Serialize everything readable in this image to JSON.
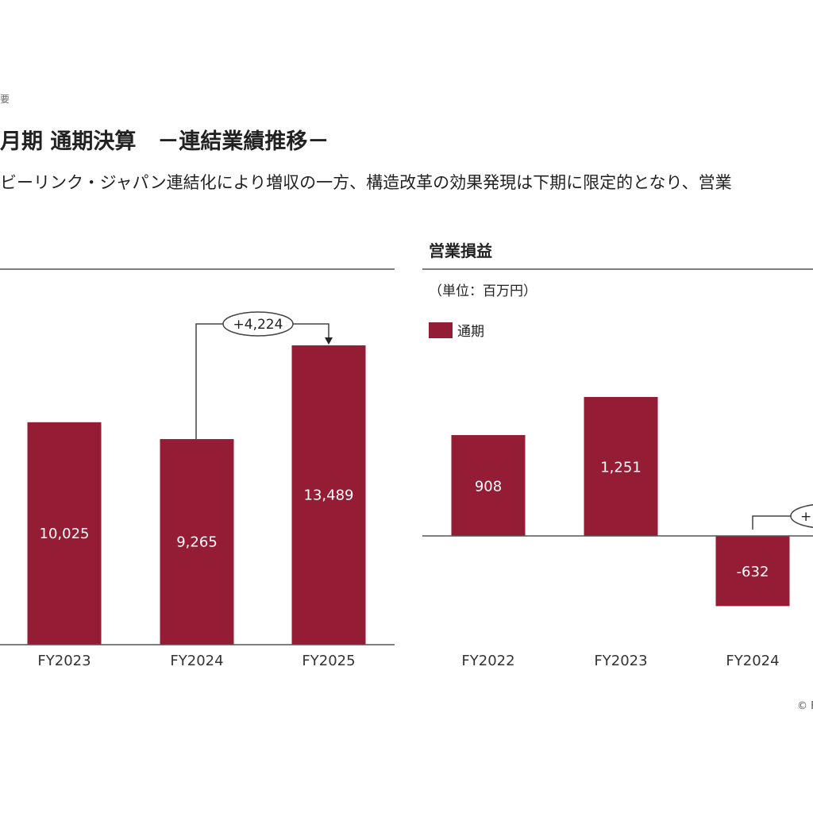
{
  "header": {
    "breadcrumb": "要",
    "title": "月期 通期決算　－連結業績推移－",
    "subtitle": "ビーリンク・ジャパン連結化により増収の一方、構造改革の効果発現は下期に限定的となり、営業"
  },
  "footer": {
    "copyright": "© F"
  },
  "colors": {
    "bar": "#951c35",
    "axis": "#555555",
    "connector": "#444444"
  },
  "chart_data": [
    {
      "type": "bar",
      "title": "",
      "categories": [
        "FY2023",
        "FY2024",
        "FY2025"
      ],
      "values": [
        10025,
        9265,
        13489
      ],
      "value_labels": [
        "10,025",
        "9,265",
        "13,489"
      ],
      "ylim": [
        0,
        14000
      ],
      "annotation": {
        "from": "FY2024",
        "to": "FY2025",
        "label": "+4,224"
      }
    },
    {
      "type": "bar",
      "title": "営業損益",
      "unit": "（単位：百万円）",
      "legend": [
        {
          "name": "通期"
        }
      ],
      "legend_placement": "top-left",
      "categories": [
        "FY2022",
        "FY2023",
        "FY2024"
      ],
      "values": [
        908,
        1251,
        -632
      ],
      "value_labels": [
        "908",
        "1,251",
        "-632"
      ],
      "annotation": {
        "from": "FY2024",
        "label": "+"
      }
    }
  ]
}
